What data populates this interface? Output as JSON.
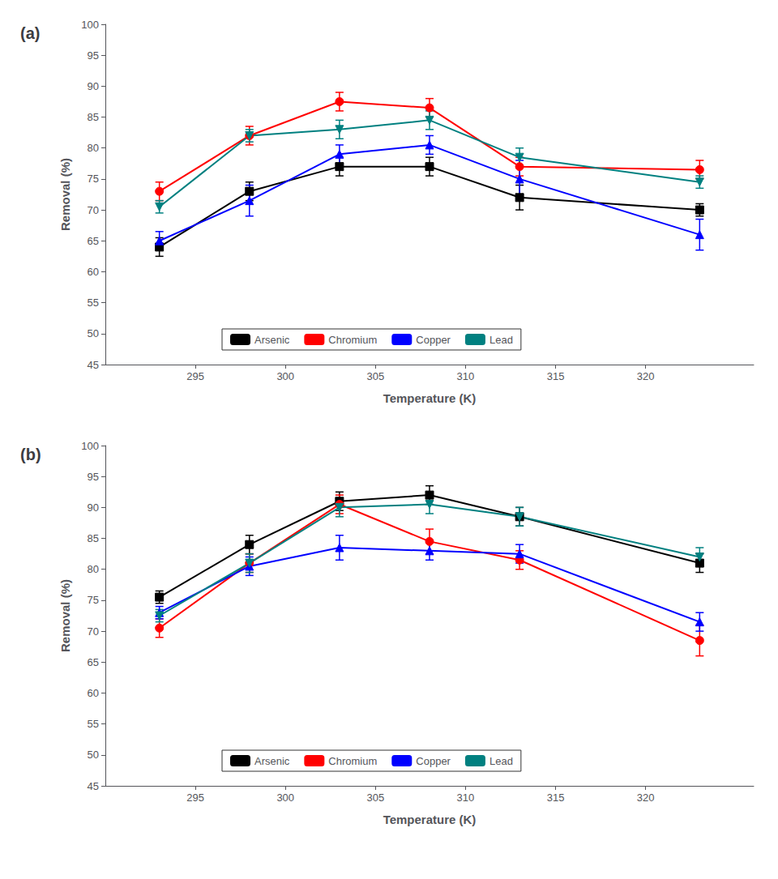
{
  "chart_data": [
    {
      "type": "line",
      "title": "(a)",
      "xlabel": "Temperature (K)",
      "ylabel": "Removal (%)",
      "x": [
        293,
        298,
        303,
        308,
        313,
        323
      ],
      "xlim": [
        290,
        326
      ],
      "xticks": [
        295,
        300,
        305,
        310,
        315,
        320
      ],
      "ylim": [
        45,
        100
      ],
      "yticks": [
        45,
        50,
        55,
        60,
        65,
        70,
        75,
        80,
        85,
        90,
        95,
        100
      ],
      "grid": false,
      "legend": "lower center",
      "series": [
        {
          "name": "Arsenic",
          "color": "#000000",
          "marker": "square",
          "values": [
            64,
            73,
            77,
            77,
            72,
            70
          ],
          "yerr": [
            1.5,
            1.5,
            1.5,
            1.5,
            2.0,
            1.0
          ]
        },
        {
          "name": "Chromium",
          "color": "#ff0000",
          "marker": "circle",
          "values": [
            73,
            82,
            87.5,
            86.5,
            77,
            76.5
          ],
          "yerr": [
            1.5,
            1.5,
            1.5,
            1.5,
            1.5,
            1.5
          ]
        },
        {
          "name": "Copper",
          "color": "#0000ff",
          "marker": "triangle-up",
          "values": [
            65,
            71.5,
            79,
            80.5,
            75,
            66
          ],
          "yerr": [
            1.5,
            2.5,
            1.5,
            1.5,
            3.0,
            2.5
          ]
        },
        {
          "name": "Lead",
          "color": "#008080",
          "marker": "triangle-down",
          "values": [
            70.5,
            82,
            83,
            84.5,
            78.5,
            74.5
          ],
          "yerr": [
            1.0,
            1.0,
            1.5,
            1.5,
            1.5,
            1.0
          ]
        }
      ]
    },
    {
      "type": "line",
      "title": "(b)",
      "xlabel": "Temperature (K)",
      "ylabel": "Removal (%)",
      "x": [
        293,
        298,
        303,
        308,
        313,
        323
      ],
      "xlim": [
        290,
        326
      ],
      "xticks": [
        295,
        300,
        305,
        310,
        315,
        320
      ],
      "ylim": [
        45,
        100
      ],
      "yticks": [
        45,
        50,
        55,
        60,
        65,
        70,
        75,
        80,
        85,
        90,
        95,
        100
      ],
      "grid": false,
      "legend": "lower center",
      "series": [
        {
          "name": "Arsenic",
          "color": "#000000",
          "marker": "square",
          "values": [
            75.5,
            84,
            91,
            92,
            88.5,
            81
          ],
          "yerr": [
            1.0,
            1.5,
            1.5,
            1.5,
            1.5,
            1.5
          ]
        },
        {
          "name": "Chromium",
          "color": "#ff0000",
          "marker": "circle",
          "values": [
            70.5,
            81,
            90.5,
            84.5,
            81.5,
            68.5
          ],
          "yerr": [
            1.5,
            1.5,
            1.5,
            2.0,
            1.5,
            2.5
          ]
        },
        {
          "name": "Copper",
          "color": "#0000ff",
          "marker": "triangle-up",
          "values": [
            73,
            80.5,
            83.5,
            83,
            82.5,
            71.5
          ],
          "yerr": [
            1.0,
            1.5,
            2.0,
            1.5,
            1.5,
            1.5
          ]
        },
        {
          "name": "Lead",
          "color": "#008080",
          "marker": "triangle-down",
          "values": [
            72.5,
            81,
            90,
            90.5,
            88.5,
            82
          ],
          "yerr": [
            1.0,
            1.5,
            1.5,
            1.5,
            1.5,
            1.5
          ]
        }
      ]
    }
  ]
}
